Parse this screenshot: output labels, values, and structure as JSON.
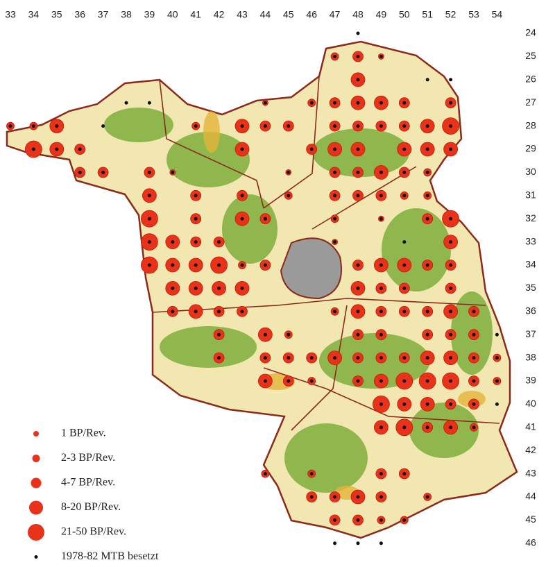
{
  "map": {
    "columns": [
      33,
      34,
      35,
      36,
      37,
      38,
      39,
      40,
      41,
      42,
      43,
      44,
      45,
      46,
      47,
      48,
      49,
      50,
      51,
      52,
      53,
      54
    ],
    "rows": [
      24,
      25,
      26,
      27,
      28,
      29,
      30,
      31,
      32,
      33,
      34,
      35,
      36,
      37,
      38,
      39,
      40,
      41,
      42,
      43,
      44,
      45,
      46
    ],
    "legend": [
      "1 BP/Rev.",
      "2-3 BP/Rev.",
      "4-7 BP/Rev.",
      "8-20 BP/Rev.",
      "21-50 BP/Rev.",
      "1978-82 MTB besetzt"
    ]
  }
}
